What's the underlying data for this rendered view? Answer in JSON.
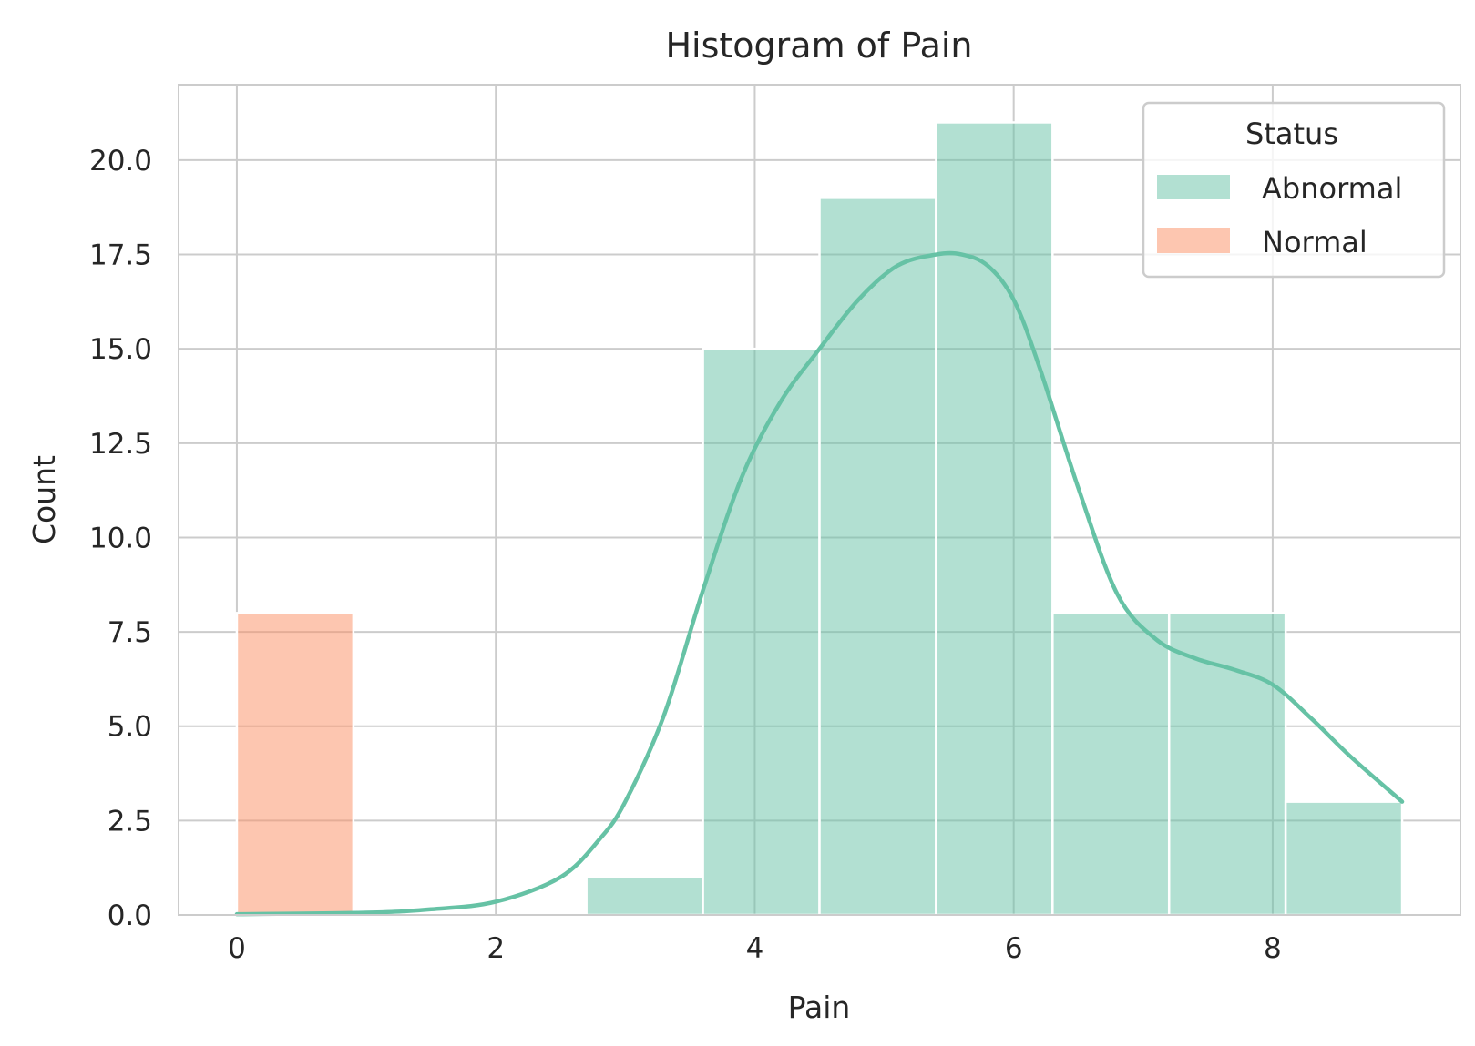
{
  "chart_data": {
    "type": "bar",
    "title": "Histogram of Pain",
    "xlabel": "Pain",
    "ylabel": "Count",
    "xlim": [
      -0.45,
      9.45
    ],
    "ylim": [
      0,
      22
    ],
    "xticks": [
      0,
      2,
      4,
      6,
      8
    ],
    "xtick_labels": [
      "0",
      "2",
      "4",
      "6",
      "8"
    ],
    "yticks": [
      0,
      2.5,
      5,
      7.5,
      10,
      12.5,
      15,
      17.5,
      20
    ],
    "ytick_labels": [
      "0.0",
      "2.5",
      "5.0",
      "7.5",
      "10.0",
      "12.5",
      "15.0",
      "17.5",
      "20.0"
    ],
    "grid": true,
    "bin_edges": [
      0,
      0.9,
      1.8,
      2.7,
      3.6,
      4.5,
      5.4,
      6.3,
      7.2,
      8.1,
      9.0
    ],
    "series": [
      {
        "name": "Abnormal",
        "color": "#66c2a5",
        "counts": [
          0,
          0,
          0,
          1,
          15,
          19,
          21,
          8,
          8,
          3
        ],
        "kde": {
          "x": [
            0,
            1,
            1.5,
            2,
            2.5,
            2.8,
            3.0,
            3.3,
            3.6,
            3.9,
            4.2,
            4.5,
            4.8,
            5.1,
            5.4,
            5.6,
            5.8,
            6.0,
            6.2,
            6.5,
            6.8,
            7.1,
            7.4,
            7.7,
            8.0,
            8.3,
            8.6,
            9.0
          ],
          "y": [
            0.02,
            0.06,
            0.15,
            0.35,
            1.0,
            2.0,
            3.0,
            5.3,
            8.6,
            11.6,
            13.6,
            15.0,
            16.3,
            17.2,
            17.5,
            17.5,
            17.2,
            16.3,
            14.5,
            11.3,
            8.5,
            7.3,
            6.8,
            6.5,
            6.1,
            5.2,
            4.2,
            3.0
          ]
        }
      },
      {
        "name": "Normal",
        "color": "#fc8d62",
        "counts": [
          8,
          0,
          0,
          0,
          0,
          0,
          0,
          0,
          0,
          0
        ]
      }
    ],
    "legend": {
      "title": "Status",
      "position": "top-right",
      "items": [
        "Abnormal",
        "Normal"
      ]
    }
  }
}
